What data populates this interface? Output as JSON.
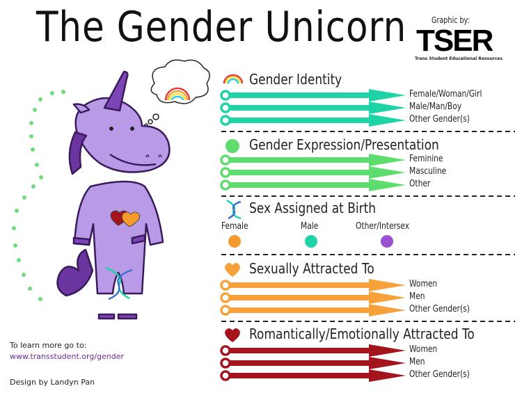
{
  "title": "The Gender Unicorn",
  "credit": {
    "graphic_by": "Graphic by:",
    "logo": "TSER",
    "logo_subtitle": "Trans Student Educational Resources"
  },
  "colors": {
    "identity": "#1ed3a6",
    "expression": "#5fdc6e",
    "female": "#f79a2e",
    "male": "#1ed3a6",
    "other": "#9b4fd1",
    "attracted": "#f7a13a",
    "romantic": "#a3141c",
    "unicorn": "#b99ae6",
    "unicorn_dark": "#5b2a8c"
  },
  "sections": [
    {
      "id": "gender-identity",
      "title": "Gender Identity",
      "icon": "rainbow-icon",
      "color": "#1ed3a6",
      "options": [
        "Female/Woman/Girl",
        "Male/Man/Boy",
        "Other Gender(s)"
      ]
    },
    {
      "id": "gender-expression",
      "title": "Gender Expression/Presentation",
      "icon": "green-circle-icon",
      "color": "#5fdc6e",
      "options": [
        "Feminine",
        "Masculine",
        "Other"
      ]
    },
    {
      "id": "sexually-attracted",
      "title": "Sexually Attracted To",
      "icon": "orange-heart-icon",
      "color": "#f7a13a",
      "options": [
        "Women",
        "Men",
        "Other Gender(s)"
      ]
    },
    {
      "id": "romantically-attracted",
      "title": "Romantically/Emotionally Attracted To",
      "icon": "red-heart-icon",
      "color": "#a3141c",
      "options": [
        "Women",
        "Men",
        "Other Gender(s)"
      ]
    }
  ],
  "sex_assigned": {
    "title": "Sex Assigned at Birth",
    "icon": "dna-icon",
    "options": [
      {
        "label": "Female",
        "color": "#f79a2e"
      },
      {
        "label": "Male",
        "color": "#1ed3a6"
      },
      {
        "label": "Other/Intersex",
        "color": "#9b4fd1"
      }
    ]
  },
  "footer": {
    "learn_more": "To learn more go to:",
    "url": "www.transstudent.org/gender",
    "design": "Design by Landyn Pan"
  }
}
